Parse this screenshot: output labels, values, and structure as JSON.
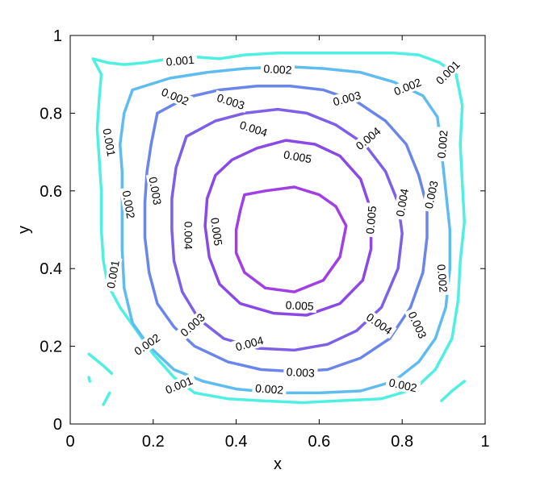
{
  "chart_data": {
    "type": "contour",
    "xlabel": "x",
    "ylabel": "y",
    "xlim": [
      0,
      1
    ],
    "ylim": [
      0,
      1
    ],
    "xticks": [
      "0",
      "0.2",
      "0.4",
      "0.6",
      "0.8",
      "1"
    ],
    "yticks": [
      "0",
      "0.2",
      "0.4",
      "0.6",
      "0.8",
      "1"
    ],
    "grid": false,
    "levels": [
      {
        "value": "0.001",
        "color": "#4ff0e2",
        "paths": [
          [
            [
              0.055,
              0.94
            ],
            [
              0.075,
              0.9
            ],
            [
              0.07,
              0.84
            ],
            [
              0.065,
              0.76
            ],
            [
              0.07,
              0.68
            ],
            [
              0.075,
              0.6
            ],
            [
              0.075,
              0.5
            ],
            [
              0.08,
              0.42
            ],
            [
              0.09,
              0.36
            ],
            [
              0.12,
              0.3
            ],
            [
              0.16,
              0.24
            ],
            [
              0.2,
              0.18
            ],
            [
              0.25,
              0.12
            ],
            [
              0.3,
              0.08
            ],
            [
              0.38,
              0.065
            ],
            [
              0.46,
              0.06
            ],
            [
              0.56,
              0.055
            ],
            [
              0.65,
              0.06
            ],
            [
              0.75,
              0.065
            ],
            [
              0.83,
              0.09
            ],
            [
              0.88,
              0.14
            ],
            [
              0.92,
              0.22
            ],
            [
              0.935,
              0.32
            ],
            [
              0.94,
              0.42
            ],
            [
              0.95,
              0.52
            ],
            [
              0.945,
              0.62
            ],
            [
              0.94,
              0.72
            ],
            [
              0.945,
              0.82
            ],
            [
              0.93,
              0.9
            ],
            [
              0.89,
              0.93
            ],
            [
              0.84,
              0.95
            ],
            [
              0.78,
              0.955
            ],
            [
              0.7,
              0.955
            ],
            [
              0.6,
              0.955
            ],
            [
              0.5,
              0.955
            ],
            [
              0.42,
              0.95
            ],
            [
              0.36,
              0.94
            ],
            [
              0.3,
              0.945
            ],
            [
              0.24,
              0.94
            ],
            [
              0.18,
              0.93
            ],
            [
              0.13,
              0.925
            ],
            [
              0.09,
              0.93
            ],
            [
              0.055,
              0.94
            ]
          ],
          [
            [
              0.045,
              0.18
            ],
            [
              0.08,
              0.15
            ],
            [
              0.1,
              0.13
            ]
          ],
          [
            [
              0.045,
              0.12
            ],
            [
              0.047,
              0.11
            ]
          ],
          [
            [
              0.08,
              0.05
            ],
            [
              0.095,
              0.08
            ]
          ],
          [
            [
              0.95,
              0.11
            ],
            [
              0.92,
              0.085
            ],
            [
              0.895,
              0.06
            ]
          ]
        ],
        "labels": [
          {
            "x": 0.265,
            "y": 0.935,
            "angle": 5
          },
          {
            "x": 0.094,
            "y": 0.725,
            "angle": -80
          },
          {
            "x": 0.103,
            "y": 0.385,
            "angle": 80
          },
          {
            "x": 0.262,
            "y": 0.1,
            "angle": 22
          },
          {
            "x": 0.91,
            "y": 0.905,
            "angle": 45
          }
        ]
      },
      {
        "value": "0.002",
        "color": "#5fbcf0",
        "paths": [
          [
            [
              0.15,
              0.86
            ],
            [
              0.24,
              0.89
            ],
            [
              0.33,
              0.905
            ],
            [
              0.42,
              0.915
            ],
            [
              0.52,
              0.92
            ],
            [
              0.61,
              0.915
            ],
            [
              0.7,
              0.905
            ],
            [
              0.78,
              0.88
            ],
            [
              0.85,
              0.845
            ],
            [
              0.885,
              0.79
            ],
            [
              0.895,
              0.7
            ],
            [
              0.905,
              0.6
            ],
            [
              0.915,
              0.5
            ],
            [
              0.915,
              0.4
            ],
            [
              0.905,
              0.3
            ],
            [
              0.88,
              0.22
            ],
            [
              0.84,
              0.16
            ],
            [
              0.78,
              0.11
            ],
            [
              0.7,
              0.085
            ],
            [
              0.6,
              0.08
            ],
            [
              0.5,
              0.08
            ],
            [
              0.4,
              0.09
            ],
            [
              0.32,
              0.11
            ],
            [
              0.25,
              0.14
            ],
            [
              0.19,
              0.2
            ],
            [
              0.15,
              0.26
            ],
            [
              0.13,
              0.35
            ],
            [
              0.125,
              0.45
            ],
            [
              0.125,
              0.55
            ],
            [
              0.125,
              0.65
            ],
            [
              0.12,
              0.72
            ],
            [
              0.13,
              0.8
            ],
            [
              0.15,
              0.86
            ]
          ]
        ],
        "labels": [
          {
            "x": 0.5,
            "y": 0.913,
            "angle": -3
          },
          {
            "x": 0.253,
            "y": 0.843,
            "angle": -22
          },
          {
            "x": 0.813,
            "y": 0.868,
            "angle": 22
          },
          {
            "x": 0.141,
            "y": 0.565,
            "angle": -80
          },
          {
            "x": 0.897,
            "y": 0.72,
            "angle": 85
          },
          {
            "x": 0.185,
            "y": 0.205,
            "angle": 35
          },
          {
            "x": 0.897,
            "y": 0.375,
            "angle": -85
          },
          {
            "x": 0.802,
            "y": 0.1,
            "angle": -12
          },
          {
            "x": 0.48,
            "y": 0.09,
            "angle": -4
          }
        ]
      },
      {
        "value": "0.003",
        "color": "#6b86ea",
        "paths": [
          [
            [
              0.21,
              0.8
            ],
            [
              0.28,
              0.84
            ],
            [
              0.36,
              0.86
            ],
            [
              0.45,
              0.87
            ],
            [
              0.53,
              0.87
            ],
            [
              0.61,
              0.86
            ],
            [
              0.69,
              0.83
            ],
            [
              0.76,
              0.78
            ],
            [
              0.81,
              0.72
            ],
            [
              0.84,
              0.64
            ],
            [
              0.86,
              0.56
            ],
            [
              0.86,
              0.48
            ],
            [
              0.85,
              0.39
            ],
            [
              0.82,
              0.3
            ],
            [
              0.77,
              0.22
            ],
            [
              0.7,
              0.17
            ],
            [
              0.62,
              0.14
            ],
            [
              0.54,
              0.135
            ],
            [
              0.46,
              0.14
            ],
            [
              0.38,
              0.16
            ],
            [
              0.3,
              0.2
            ],
            [
              0.25,
              0.25
            ],
            [
              0.21,
              0.31
            ],
            [
              0.19,
              0.39
            ],
            [
              0.18,
              0.48
            ],
            [
              0.18,
              0.57
            ],
            [
              0.185,
              0.65
            ],
            [
              0.195,
              0.72
            ],
            [
              0.21,
              0.8
            ]
          ]
        ],
        "labels": [
          {
            "x": 0.387,
            "y": 0.83,
            "angle": -18
          },
          {
            "x": 0.667,
            "y": 0.838,
            "angle": 15
          },
          {
            "x": 0.205,
            "y": 0.6,
            "angle": -80
          },
          {
            "x": 0.87,
            "y": 0.59,
            "angle": 78
          },
          {
            "x": 0.295,
            "y": 0.255,
            "angle": 42
          },
          {
            "x": 0.837,
            "y": 0.255,
            "angle": -65
          },
          {
            "x": 0.555,
            "y": 0.133,
            "angle": -3
          }
        ]
      },
      {
        "value": "0.004",
        "color": "#7d5fe8",
        "paths": [
          [
            [
              0.28,
              0.74
            ],
            [
              0.35,
              0.78
            ],
            [
              0.42,
              0.8
            ],
            [
              0.5,
              0.81
            ],
            [
              0.57,
              0.8
            ],
            [
              0.64,
              0.77
            ],
            [
              0.71,
              0.72
            ],
            [
              0.76,
              0.65
            ],
            [
              0.79,
              0.57
            ],
            [
              0.8,
              0.49
            ],
            [
              0.79,
              0.4
            ],
            [
              0.75,
              0.3
            ],
            [
              0.69,
              0.24
            ],
            [
              0.62,
              0.205
            ],
            [
              0.54,
              0.19
            ],
            [
              0.45,
              0.195
            ],
            [
              0.37,
              0.22
            ],
            [
              0.31,
              0.27
            ],
            [
              0.27,
              0.34
            ],
            [
              0.25,
              0.42
            ],
            [
              0.245,
              0.5
            ],
            [
              0.245,
              0.58
            ],
            [
              0.255,
              0.66
            ],
            [
              0.28,
              0.74
            ]
          ]
        ],
        "labels": [
          {
            "x": 0.442,
            "y": 0.76,
            "angle": -18
          },
          {
            "x": 0.718,
            "y": 0.735,
            "angle": 40
          },
          {
            "x": 0.285,
            "y": 0.485,
            "angle": -90
          },
          {
            "x": 0.8,
            "y": 0.57,
            "angle": 80
          },
          {
            "x": 0.432,
            "y": 0.207,
            "angle": 15
          },
          {
            "x": 0.745,
            "y": 0.258,
            "angle": -35
          }
        ]
      },
      {
        "value": "0.005",
        "color": "#8a49e6",
        "paths": [
          [
            [
              0.39,
              0.68
            ],
            [
              0.45,
              0.71
            ],
            [
              0.52,
              0.73
            ],
            [
              0.59,
              0.72
            ],
            [
              0.65,
              0.69
            ],
            [
              0.7,
              0.63
            ],
            [
              0.725,
              0.55
            ],
            [
              0.725,
              0.45
            ],
            [
              0.705,
              0.37
            ],
            [
              0.65,
              0.31
            ],
            [
              0.57,
              0.28
            ],
            [
              0.49,
              0.285
            ],
            [
              0.41,
              0.31
            ],
            [
              0.36,
              0.36
            ],
            [
              0.335,
              0.43
            ],
            [
              0.325,
              0.51
            ],
            [
              0.33,
              0.58
            ],
            [
              0.35,
              0.64
            ],
            [
              0.39,
              0.68
            ]
          ]
        ],
        "labels": [
          {
            "x": 0.548,
            "y": 0.688,
            "angle": -10
          },
          {
            "x": 0.353,
            "y": 0.495,
            "angle": -82
          },
          {
            "x": 0.725,
            "y": 0.525,
            "angle": 85
          },
          {
            "x": 0.553,
            "y": 0.305,
            "angle": -3
          }
        ]
      },
      {
        "value": "",
        "color": "#a23fe4",
        "paths": [
          [
            [
              0.42,
              0.59
            ],
            [
              0.47,
              0.6
            ],
            [
              0.54,
              0.61
            ],
            [
              0.6,
              0.59
            ],
            [
              0.64,
              0.56
            ],
            [
              0.665,
              0.51
            ],
            [
              0.65,
              0.43
            ],
            [
              0.61,
              0.37
            ],
            [
              0.54,
              0.34
            ],
            [
              0.47,
              0.35
            ],
            [
              0.42,
              0.39
            ],
            [
              0.4,
              0.44
            ],
            [
              0.4,
              0.5
            ],
            [
              0.41,
              0.55
            ],
            [
              0.42,
              0.59
            ]
          ]
        ],
        "labels": []
      }
    ]
  }
}
